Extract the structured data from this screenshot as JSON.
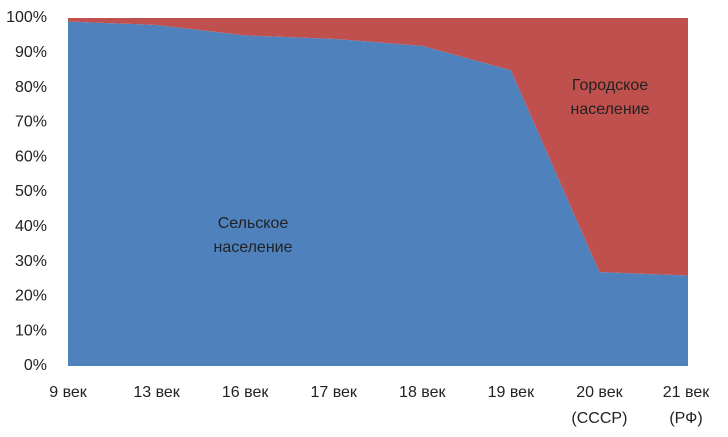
{
  "chart_data": {
    "type": "stacked_area",
    "categories": [
      "9 век",
      "13 век",
      "16 век",
      "17 век",
      "18 век",
      "19  век",
      "20 век\n(СССР)",
      "21 век\n(РФ)"
    ],
    "series": [
      {
        "name": "Сельское\nнаселение",
        "color": "#4f81bd",
        "values": [
          99,
          98,
          95,
          94,
          92,
          85,
          27,
          26
        ]
      },
      {
        "name": "Городское\nнаселение",
        "color": "#c0504d",
        "values": [
          1,
          2,
          5,
          6,
          8,
          15,
          73,
          74
        ]
      }
    ],
    "ylim": [
      0,
      100
    ],
    "yticks": [
      {
        "value": 0,
        "label": "0%"
      },
      {
        "value": 10,
        "label": "10%"
      },
      {
        "value": 20,
        "label": "20%"
      },
      {
        "value": 30,
        "label": "30%"
      },
      {
        "value": 40,
        "label": "40%"
      },
      {
        "value": 50,
        "label": "50%"
      },
      {
        "value": 60,
        "label": "60%"
      },
      {
        "value": 70,
        "label": "70%"
      },
      {
        "value": 80,
        "label": "80%"
      },
      {
        "value": 90,
        "label": "90%"
      },
      {
        "value": 100,
        "label": "100%"
      }
    ]
  }
}
